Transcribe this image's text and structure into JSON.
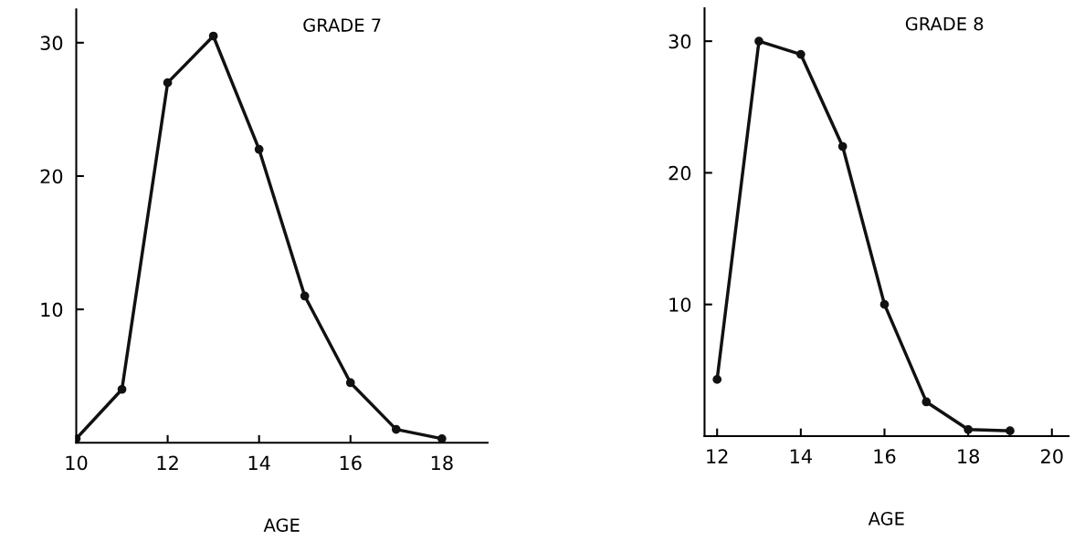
{
  "chart_data": [
    {
      "type": "line",
      "title": "GRADE 7",
      "xlabel": "AGE",
      "x": [
        10,
        11,
        12,
        13,
        14,
        15,
        16,
        17,
        18
      ],
      "series": [
        {
          "color": "#111111",
          "values": [
            0.3,
            4,
            27,
            30.5,
            22,
            11,
            4.5,
            1,
            0.3
          ]
        }
      ],
      "xlim": [
        10,
        19
      ],
      "xticks": [
        10,
        12,
        14,
        16,
        18
      ],
      "ylim": [
        0,
        32.5
      ],
      "yticks": [
        10,
        20,
        30
      ],
      "marker": "circle",
      "line_style": "solid",
      "grid": false,
      "legend": false
    },
    {
      "type": "line",
      "title": "GRADE 8",
      "xlabel": "AGE",
      "x": [
        12,
        13,
        14,
        15,
        16,
        17,
        18,
        19
      ],
      "series": [
        {
          "color": "#111111",
          "values": [
            4.3,
            30,
            29,
            22,
            10,
            2.6,
            0.5,
            0.4
          ]
        }
      ],
      "xlim": [
        11.7,
        20.4
      ],
      "xticks": [
        12,
        14,
        16,
        18,
        20
      ],
      "ylim": [
        0,
        32.5
      ],
      "yticks": [
        10,
        20,
        30
      ],
      "marker": "circle",
      "line_style": "solid",
      "grid": false,
      "legend": false
    }
  ]
}
